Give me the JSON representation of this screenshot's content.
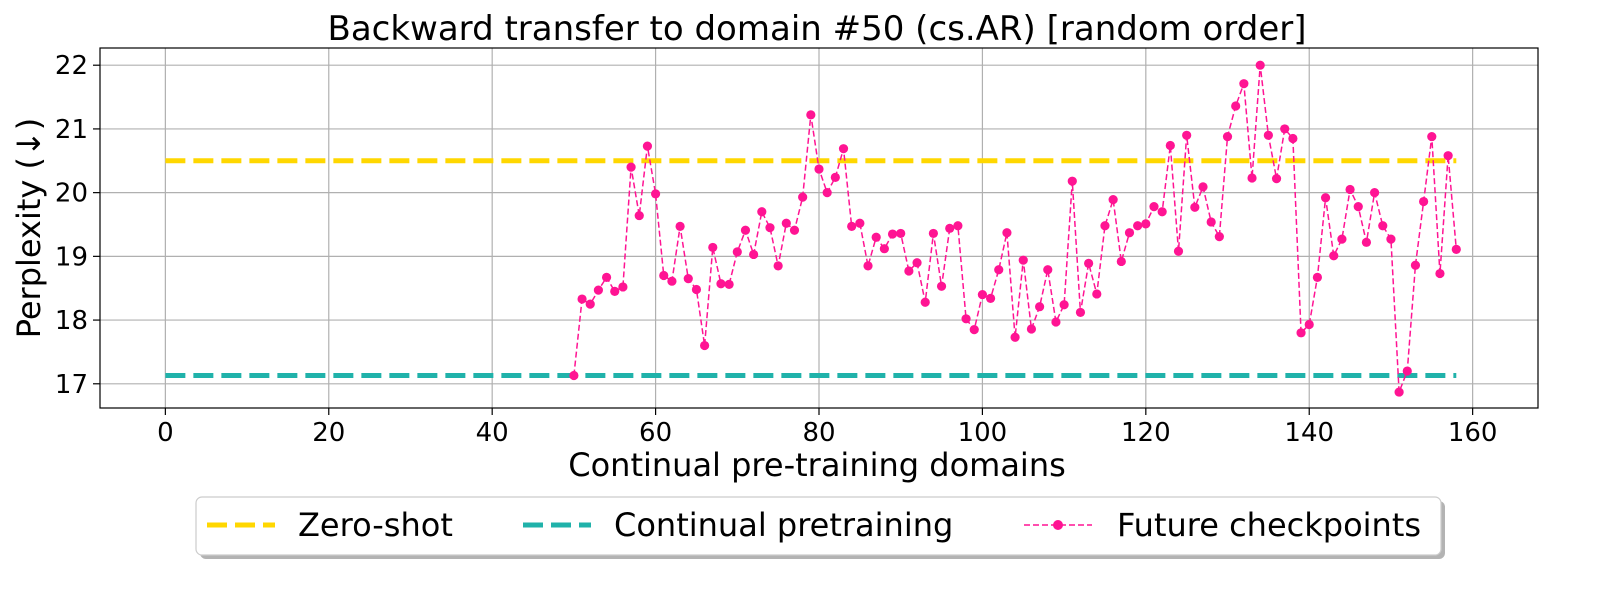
{
  "chart_data": {
    "type": "line",
    "title": "Backward transfer to domain #50 (cs.AR) [random order]",
    "xlabel": "Continual pre-training domains",
    "ylabel": "Perplexity (↓)",
    "xlim": [
      -8,
      168
    ],
    "ylim": [
      16.62,
      22.27
    ],
    "xticks": [
      0,
      20,
      40,
      60,
      80,
      100,
      120,
      140,
      160
    ],
    "yticks": [
      17,
      18,
      19,
      20,
      21,
      22
    ],
    "grid": true,
    "legend_position": "bottom-center",
    "series": [
      {
        "name": "Zero-shot",
        "style": "dashed",
        "color": "#FFD700",
        "x": [
          0,
          158
        ],
        "y": [
          20.5,
          20.5
        ]
      },
      {
        "name": "Continual pretraining",
        "style": "dashed",
        "color": "#20B2AA",
        "x": [
          0,
          158
        ],
        "y": [
          17.13,
          17.13
        ]
      },
      {
        "name": "Future checkpoints",
        "style": "dashed-markers",
        "color": "#FF1493",
        "x": [
          50,
          51,
          52,
          53,
          54,
          55,
          56,
          57,
          58,
          59,
          60,
          61,
          62,
          63,
          64,
          65,
          66,
          67,
          68,
          69,
          70,
          71,
          72,
          73,
          74,
          75,
          76,
          77,
          78,
          79,
          80,
          81,
          82,
          83,
          84,
          85,
          86,
          87,
          88,
          89,
          90,
          91,
          92,
          93,
          94,
          95,
          96,
          97,
          98,
          99,
          100,
          101,
          102,
          103,
          104,
          105,
          106,
          107,
          108,
          109,
          110,
          111,
          112,
          113,
          114,
          115,
          116,
          117,
          118,
          119,
          120,
          121,
          122,
          123,
          124,
          125,
          126,
          127,
          128,
          129,
          130,
          131,
          132,
          133,
          134,
          135,
          136,
          137,
          138,
          139,
          140,
          141,
          142,
          143,
          144,
          145,
          146,
          147,
          148,
          149,
          150,
          151,
          152,
          153,
          154,
          155,
          156,
          157,
          158
        ],
        "y": [
          17.13,
          18.33,
          18.25,
          18.47,
          18.67,
          18.45,
          18.52,
          20.4,
          19.64,
          20.73,
          19.98,
          18.7,
          18.61,
          19.47,
          18.65,
          18.48,
          17.6,
          19.14,
          18.57,
          18.56,
          19.07,
          19.41,
          19.03,
          19.7,
          19.45,
          18.85,
          19.52,
          19.41,
          19.93,
          21.22,
          20.37,
          20.0,
          20.24,
          20.69,
          19.47,
          19.52,
          18.85,
          19.3,
          19.12,
          19.35,
          19.36,
          18.77,
          18.9,
          18.28,
          19.36,
          18.53,
          19.44,
          19.48,
          18.02,
          17.85,
          18.4,
          18.34,
          18.79,
          19.37,
          17.73,
          18.94,
          17.86,
          18.21,
          18.79,
          17.97,
          18.24,
          20.18,
          18.12,
          18.89,
          18.41,
          19.48,
          19.89,
          18.92,
          19.37,
          19.48,
          19.51,
          19.78,
          19.7,
          20.74,
          19.08,
          20.9,
          19.77,
          20.09,
          19.54,
          19.31,
          20.88,
          21.36,
          21.71,
          20.23,
          22.0,
          20.9,
          20.22,
          21.0,
          20.85,
          17.8,
          17.93,
          18.67,
          19.92,
          19.01,
          19.27,
          20.05,
          19.78,
          19.22,
          20.0,
          19.48,
          19.27,
          16.87,
          17.2,
          18.86,
          19.86,
          20.88,
          18.73,
          20.58,
          19.11
        ]
      }
    ]
  }
}
